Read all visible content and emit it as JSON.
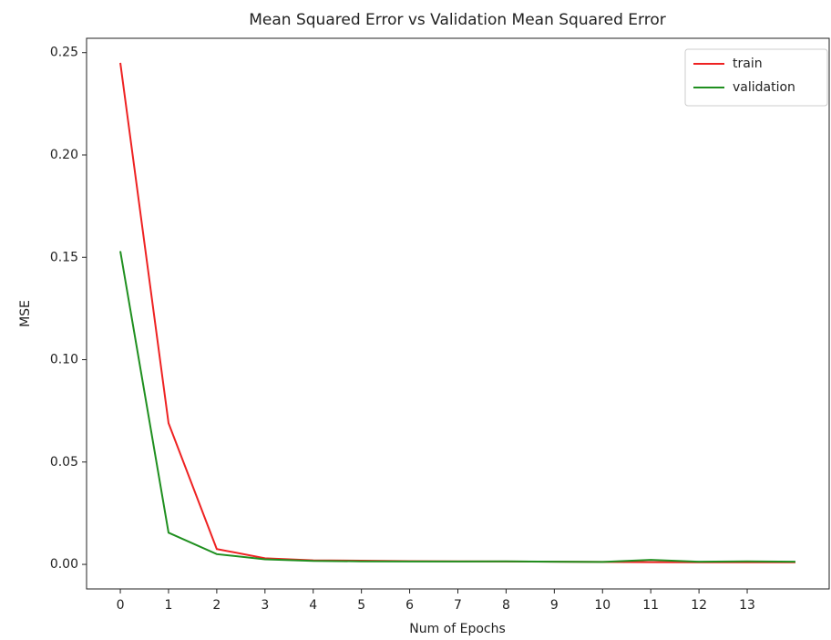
{
  "chart_data": {
    "type": "line",
    "title": "Mean Squared Error vs Validation Mean Squared Error",
    "xlabel": "Num of Epochs",
    "ylabel": "MSE",
    "x": [
      0,
      1,
      2,
      3,
      4,
      5,
      6,
      7,
      8,
      9,
      10,
      11,
      12,
      13,
      14
    ],
    "series": [
      {
        "name": "train",
        "color": "#ee2222",
        "values": [
          0.245,
          0.069,
          0.0075,
          0.003,
          0.002,
          0.0018,
          0.0016,
          0.0015,
          0.0014,
          0.0013,
          0.0012,
          0.0011,
          0.001,
          0.001,
          0.001
        ]
      },
      {
        "name": "validation",
        "color": "#1f8f1f",
        "values": [
          0.153,
          0.0155,
          0.005,
          0.0025,
          0.0017,
          0.0015,
          0.0014,
          0.0014,
          0.0015,
          0.0013,
          0.0012,
          0.0022,
          0.0013,
          0.0015,
          0.0013
        ]
      }
    ],
    "xlim": [
      -0.7,
      14.7
    ],
    "xticks": [
      0,
      1,
      2,
      3,
      4,
      5,
      6,
      7,
      8,
      9,
      10,
      11,
      12,
      13
    ],
    "ylim": [
      -0.012,
      0.257
    ],
    "yticks": [
      {
        "value": 0,
        "label": "0.00"
      },
      0.05,
      {
        "value": 0.1,
        "label": "0.10"
      },
      0.15,
      {
        "value": 0.2,
        "label": "0.20"
      },
      0.25
    ],
    "grid": false,
    "legend": "upper right"
  }
}
